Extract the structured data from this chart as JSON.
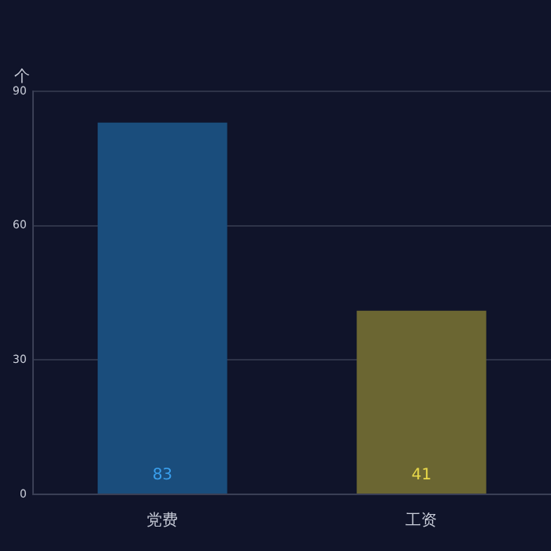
{
  "chart_data": {
    "type": "bar",
    "ylabel": "个",
    "categories": [
      "党费",
      "工资"
    ],
    "values": [
      83,
      41
    ],
    "colors": [
      "#1a4d7c",
      "#6b6632"
    ],
    "ylim": [
      0,
      90
    ],
    "yticks": [
      0,
      30,
      60,
      90
    ],
    "grid": "y",
    "data_labels": true,
    "legend": false
  }
}
